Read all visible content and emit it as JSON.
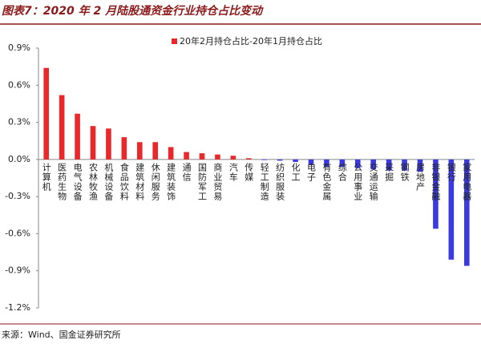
{
  "chart_data": {
    "type": "bar",
    "title": "图表7：2020 年 2 月陆股通资金行业持仓占比变动",
    "source": "来源：Wind、国金证券研究所",
    "categories": [
      "计算机",
      "医药生物",
      "电气设备",
      "农林牧渔",
      "机械设备",
      "食品饮料",
      "建筑材料",
      "休闲服务",
      "建筑装饰",
      "通信",
      "国防军工",
      "商业贸易",
      "汽车",
      "传媒",
      "轻工制造",
      "纺织服装",
      "化工",
      "电子",
      "有色金属",
      "综合",
      "公用事业",
      "交通运输",
      "采掘",
      "钢铁",
      "房地产",
      "非银金融",
      "银行",
      "家用电器"
    ],
    "series": [
      {
        "name": "20年2月持仓占比-20年1月持仓占比",
        "color": "#e8282b",
        "values": [
          0.74,
          0.52,
          0.37,
          0.27,
          0.25,
          0.18,
          0.14,
          0.14,
          0.1,
          0.06,
          0.05,
          0.04,
          0.03,
          0.01,
          -0.005,
          -0.01,
          -0.02,
          -0.04,
          -0.06,
          -0.06,
          -0.07,
          -0.08,
          -0.09,
          -0.09,
          -0.1,
          -0.56,
          -0.81,
          -0.86
        ]
      }
    ],
    "negative_color": "#3a3adf",
    "ylim": [
      -1.2,
      0.9
    ],
    "yticks": [
      {
        "value": -1.2,
        "label": "-1.2%"
      },
      {
        "value": -0.9,
        "label": "-0.9%"
      },
      {
        "value": -0.6,
        "label": "-0.6%"
      },
      {
        "value": -0.3,
        "label": "-0.3%"
      },
      {
        "value": 0,
        "label": "0.0%"
      },
      {
        "value": 0.3,
        "label": "0.3%"
      },
      {
        "value": 0.6,
        "label": "0.6%"
      },
      {
        "value": 0.9,
        "label": "0.9%"
      }
    ],
    "grid": false,
    "legend": "top"
  }
}
